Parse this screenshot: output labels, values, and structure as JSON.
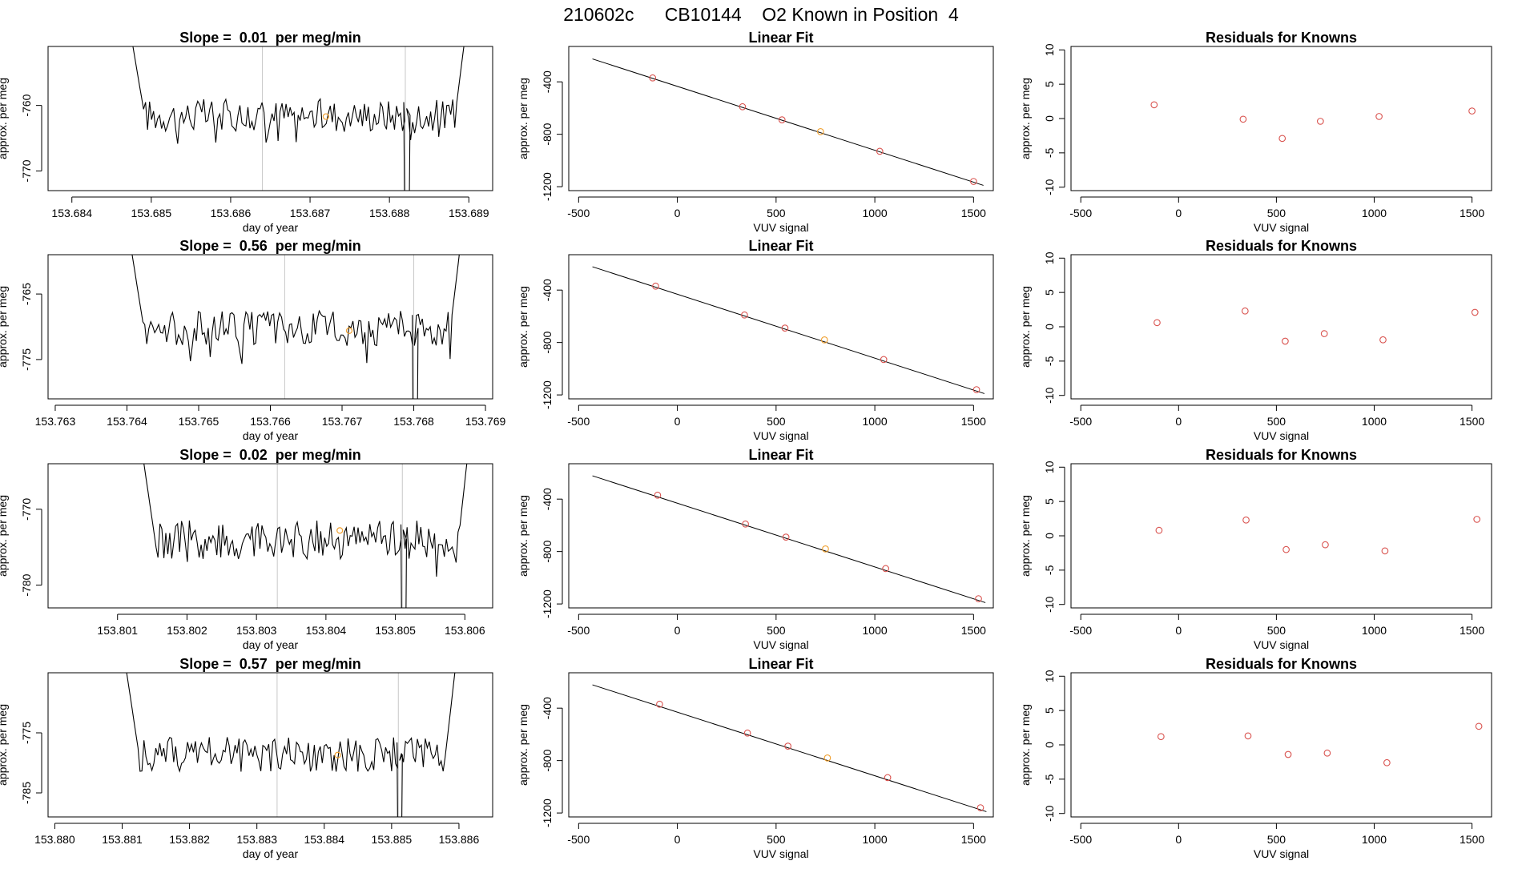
{
  "page_title": "210602c      CB10144    O2 Known in Position  4",
  "colors": {
    "axis": "#000000",
    "trace": "#000000",
    "vline": "#c8c8c8",
    "known_point": "#d9534f",
    "highlight_point": "#f0a030"
  },
  "chart_data": [
    {
      "id": "r1-time",
      "type": "line",
      "title": "Slope =  0.01  per meg/min",
      "xlabel": "day of year",
      "ylabel": "approx. per meg",
      "xlim": [
        153.6837,
        153.6893
      ],
      "ylim": [
        -773,
        -751
      ],
      "xticks": [
        "153.684",
        "153.685",
        "153.686",
        "153.687",
        "153.688",
        "153.689"
      ],
      "yticks": [
        "-760",
        "-770"
      ],
      "trace": {
        "x_start": 153.6847,
        "x_end": 153.689,
        "baseline": -761.5,
        "noise": 1.6,
        "spike_x": 153.6882,
        "spike_depth": -790
      },
      "vlines": [
        153.6864,
        153.6882
      ],
      "highlight": {
        "x": 153.6872,
        "y": -761.7
      }
    },
    {
      "id": "r1-fit",
      "type": "scatter",
      "title": "Linear Fit",
      "xlabel": "VUV signal",
      "ylabel": "approx. per meg",
      "xlim": [
        -550,
        1600
      ],
      "ylim": [
        -1230,
        -130
      ],
      "xticks": [
        "-500",
        "0",
        "500",
        "1000",
        "1500"
      ],
      "yticks": [
        "-400",
        "-800",
        "-1200"
      ],
      "line": {
        "x": [
          -430,
          1550
        ],
        "y": [
          -225,
          -1190
        ]
      },
      "points": [
        {
          "x": -125,
          "y": -370
        },
        {
          "x": 330,
          "y": -590
        },
        {
          "x": 530,
          "y": -690
        },
        {
          "x": 725,
          "y": -780,
          "highlight": true
        },
        {
          "x": 1025,
          "y": -930
        },
        {
          "x": 1500,
          "y": -1160
        }
      ]
    },
    {
      "id": "r1-resid",
      "type": "scatter",
      "title": "Residuals for Knowns",
      "xlabel": "VUV signal",
      "ylabel": "approx. per meg",
      "xlim": [
        -550,
        1600
      ],
      "ylim": [
        -10.5,
        10.5
      ],
      "xticks": [
        "-500",
        "0",
        "500",
        "1000",
        "1500"
      ],
      "yticks": [
        "10",
        "5",
        "0",
        "-5",
        "-10"
      ],
      "points": [
        {
          "x": -125,
          "y": 2.0
        },
        {
          "x": 330,
          "y": -0.1
        },
        {
          "x": 530,
          "y": -2.9
        },
        {
          "x": 725,
          "y": -0.4
        },
        {
          "x": 1025,
          "y": 0.3
        },
        {
          "x": 1500,
          "y": 1.1
        }
      ]
    },
    {
      "id": "r2-time",
      "type": "line",
      "title": "Slope =  0.56  per meg/min",
      "xlabel": "day of year",
      "ylabel": "approx. per meg",
      "xlim": [
        153.7629,
        153.7691
      ],
      "ylim": [
        -781,
        -759
      ],
      "xticks": [
        "153.763",
        "153.764",
        "153.765",
        "153.766",
        "153.767",
        "153.768",
        "153.769"
      ],
      "yticks": [
        "-765",
        "-775"
      ],
      "trace": {
        "x_start": 153.764,
        "x_end": 153.7687,
        "baseline": -770.2,
        "noise": 1.7,
        "spike_x": 153.768,
        "spike_depth": -800
      },
      "vlines": [
        153.7662,
        153.768
      ],
      "highlight": {
        "x": 153.7671,
        "y": -770.6
      }
    },
    {
      "id": "r2-fit",
      "type": "scatter",
      "title": "Linear Fit",
      "xlabel": "VUV signal",
      "ylabel": "approx. per meg",
      "xlim": [
        -550,
        1600
      ],
      "ylim": [
        -1230,
        -130
      ],
      "xticks": [
        "-500",
        "0",
        "500",
        "1000",
        "1500"
      ],
      "yticks": [
        "-400",
        "-800",
        "-1200"
      ],
      "line": {
        "x": [
          -430,
          1555
        ],
        "y": [
          -222,
          -1190
        ]
      },
      "points": [
        {
          "x": -110,
          "y": -370
        },
        {
          "x": 340,
          "y": -590
        },
        {
          "x": 545,
          "y": -690
        },
        {
          "x": 745,
          "y": -780,
          "highlight": true
        },
        {
          "x": 1045,
          "y": -930
        },
        {
          "x": 1515,
          "y": -1160
        }
      ]
    },
    {
      "id": "r2-resid",
      "type": "scatter",
      "title": "Residuals for Knowns",
      "xlabel": "VUV signal",
      "ylabel": "approx. per meg",
      "xlim": [
        -550,
        1600
      ],
      "ylim": [
        -10.5,
        10.5
      ],
      "xticks": [
        "-500",
        "0",
        "500",
        "1000",
        "1500"
      ],
      "yticks": [
        "10",
        "5",
        "0",
        "-5",
        "-10"
      ],
      "points": [
        {
          "x": -110,
          "y": 0.6
        },
        {
          "x": 340,
          "y": 2.3
        },
        {
          "x": 545,
          "y": -2.1
        },
        {
          "x": 745,
          "y": -1.0
        },
        {
          "x": 1045,
          "y": -1.9
        },
        {
          "x": 1515,
          "y": 2.1
        }
      ]
    },
    {
      "id": "r3-time",
      "type": "line",
      "title": "Slope =  0.02  per meg/min",
      "xlabel": "day of year",
      "ylabel": "approx. per meg",
      "xlim": [
        153.8,
        153.8064
      ],
      "ylim": [
        -783,
        -764
      ],
      "xticks": [
        "153.801",
        "153.802",
        "153.803",
        "153.804",
        "153.805",
        "153.806"
      ],
      "yticks": [
        "-770",
        "-780"
      ],
      "trace": {
        "x_start": 153.8013,
        "x_end": 153.8061,
        "baseline": -774.0,
        "noise": 1.6,
        "spike_x": 153.8051,
        "spike_depth": -800
      },
      "vlines": [
        153.8033,
        153.8051
      ],
      "highlight": {
        "x": 153.8042,
        "y": -772.8
      }
    },
    {
      "id": "r3-fit",
      "type": "scatter",
      "title": "Linear Fit",
      "xlabel": "VUV signal",
      "ylabel": "approx. per meg",
      "xlim": [
        -550,
        1600
      ],
      "ylim": [
        -1230,
        -130
      ],
      "xticks": [
        "-500",
        "0",
        "500",
        "1000",
        "1500"
      ],
      "yticks": [
        "-400",
        "-800",
        "-1200"
      ],
      "line": {
        "x": [
          -430,
          1560
        ],
        "y": [
          -222,
          -1190
        ]
      },
      "points": [
        {
          "x": -100,
          "y": -370
        },
        {
          "x": 345,
          "y": -590
        },
        {
          "x": 550,
          "y": -690
        },
        {
          "x": 750,
          "y": -780,
          "highlight": true
        },
        {
          "x": 1055,
          "y": -930
        },
        {
          "x": 1525,
          "y": -1160
        }
      ]
    },
    {
      "id": "r3-resid",
      "type": "scatter",
      "title": "Residuals for Knowns",
      "xlabel": "VUV signal",
      "ylabel": "approx. per meg",
      "xlim": [
        -550,
        1600
      ],
      "ylim": [
        -10.5,
        10.5
      ],
      "xticks": [
        "-500",
        "0",
        "500",
        "1000",
        "1500"
      ],
      "yticks": [
        "10",
        "5",
        "0",
        "-5",
        "-10"
      ],
      "points": [
        {
          "x": -100,
          "y": 0.8
        },
        {
          "x": 345,
          "y": 2.3
        },
        {
          "x": 550,
          "y": -2.0
        },
        {
          "x": 750,
          "y": -1.3
        },
        {
          "x": 1055,
          "y": -2.2
        },
        {
          "x": 1525,
          "y": 2.4
        }
      ]
    },
    {
      "id": "r4-time",
      "type": "line",
      "title": "Slope =  0.57  per meg/min",
      "xlabel": "day of year",
      "ylabel": "approx. per meg",
      "xlim": [
        153.8799,
        153.8865
      ],
      "ylim": [
        -789,
        -765
      ],
      "xticks": [
        "153.880",
        "153.881",
        "153.882",
        "153.883",
        "153.884",
        "153.885",
        "153.886"
      ],
      "yticks": [
        "-775",
        "-785"
      ],
      "trace": {
        "x_start": 153.881,
        "x_end": 153.886,
        "baseline": -778.6,
        "noise": 1.8,
        "spike_x": 153.8851,
        "spike_depth": -805
      },
      "vlines": [
        153.8833,
        153.8851
      ],
      "highlight": {
        "x": 153.8842,
        "y": -778.7
      }
    },
    {
      "id": "r4-fit",
      "type": "scatter",
      "title": "Linear Fit",
      "xlabel": "VUV signal",
      "ylabel": "approx. per meg",
      "xlim": [
        -550,
        1600
      ],
      "ylim": [
        -1230,
        -130
      ],
      "xticks": [
        "-500",
        "0",
        "500",
        "1000",
        "1500"
      ],
      "yticks": [
        "-400",
        "-800",
        "-1200"
      ],
      "line": {
        "x": [
          -430,
          1565
        ],
        "y": [
          -222,
          -1190
        ]
      },
      "points": [
        {
          "x": -90,
          "y": -370
        },
        {
          "x": 355,
          "y": -590
        },
        {
          "x": 560,
          "y": -690
        },
        {
          "x": 760,
          "y": -780,
          "highlight": true
        },
        {
          "x": 1065,
          "y": -930
        },
        {
          "x": 1535,
          "y": -1160
        }
      ]
    },
    {
      "id": "r4-resid",
      "type": "scatter",
      "title": "Residuals for Knowns",
      "xlabel": "VUV signal",
      "ylabel": "approx. per meg",
      "xlim": [
        -550,
        1600
      ],
      "ylim": [
        -10.5,
        10.5
      ],
      "xticks": [
        "-500",
        "0",
        "500",
        "1000",
        "1500"
      ],
      "yticks": [
        "10",
        "5",
        "0",
        "-5",
        "-10"
      ],
      "points": [
        {
          "x": -90,
          "y": 1.2
        },
        {
          "x": 355,
          "y": 1.3
        },
        {
          "x": 560,
          "y": -1.4
        },
        {
          "x": 760,
          "y": -1.2
        },
        {
          "x": 1065,
          "y": -2.6
        },
        {
          "x": 1535,
          "y": 2.7
        }
      ]
    }
  ]
}
